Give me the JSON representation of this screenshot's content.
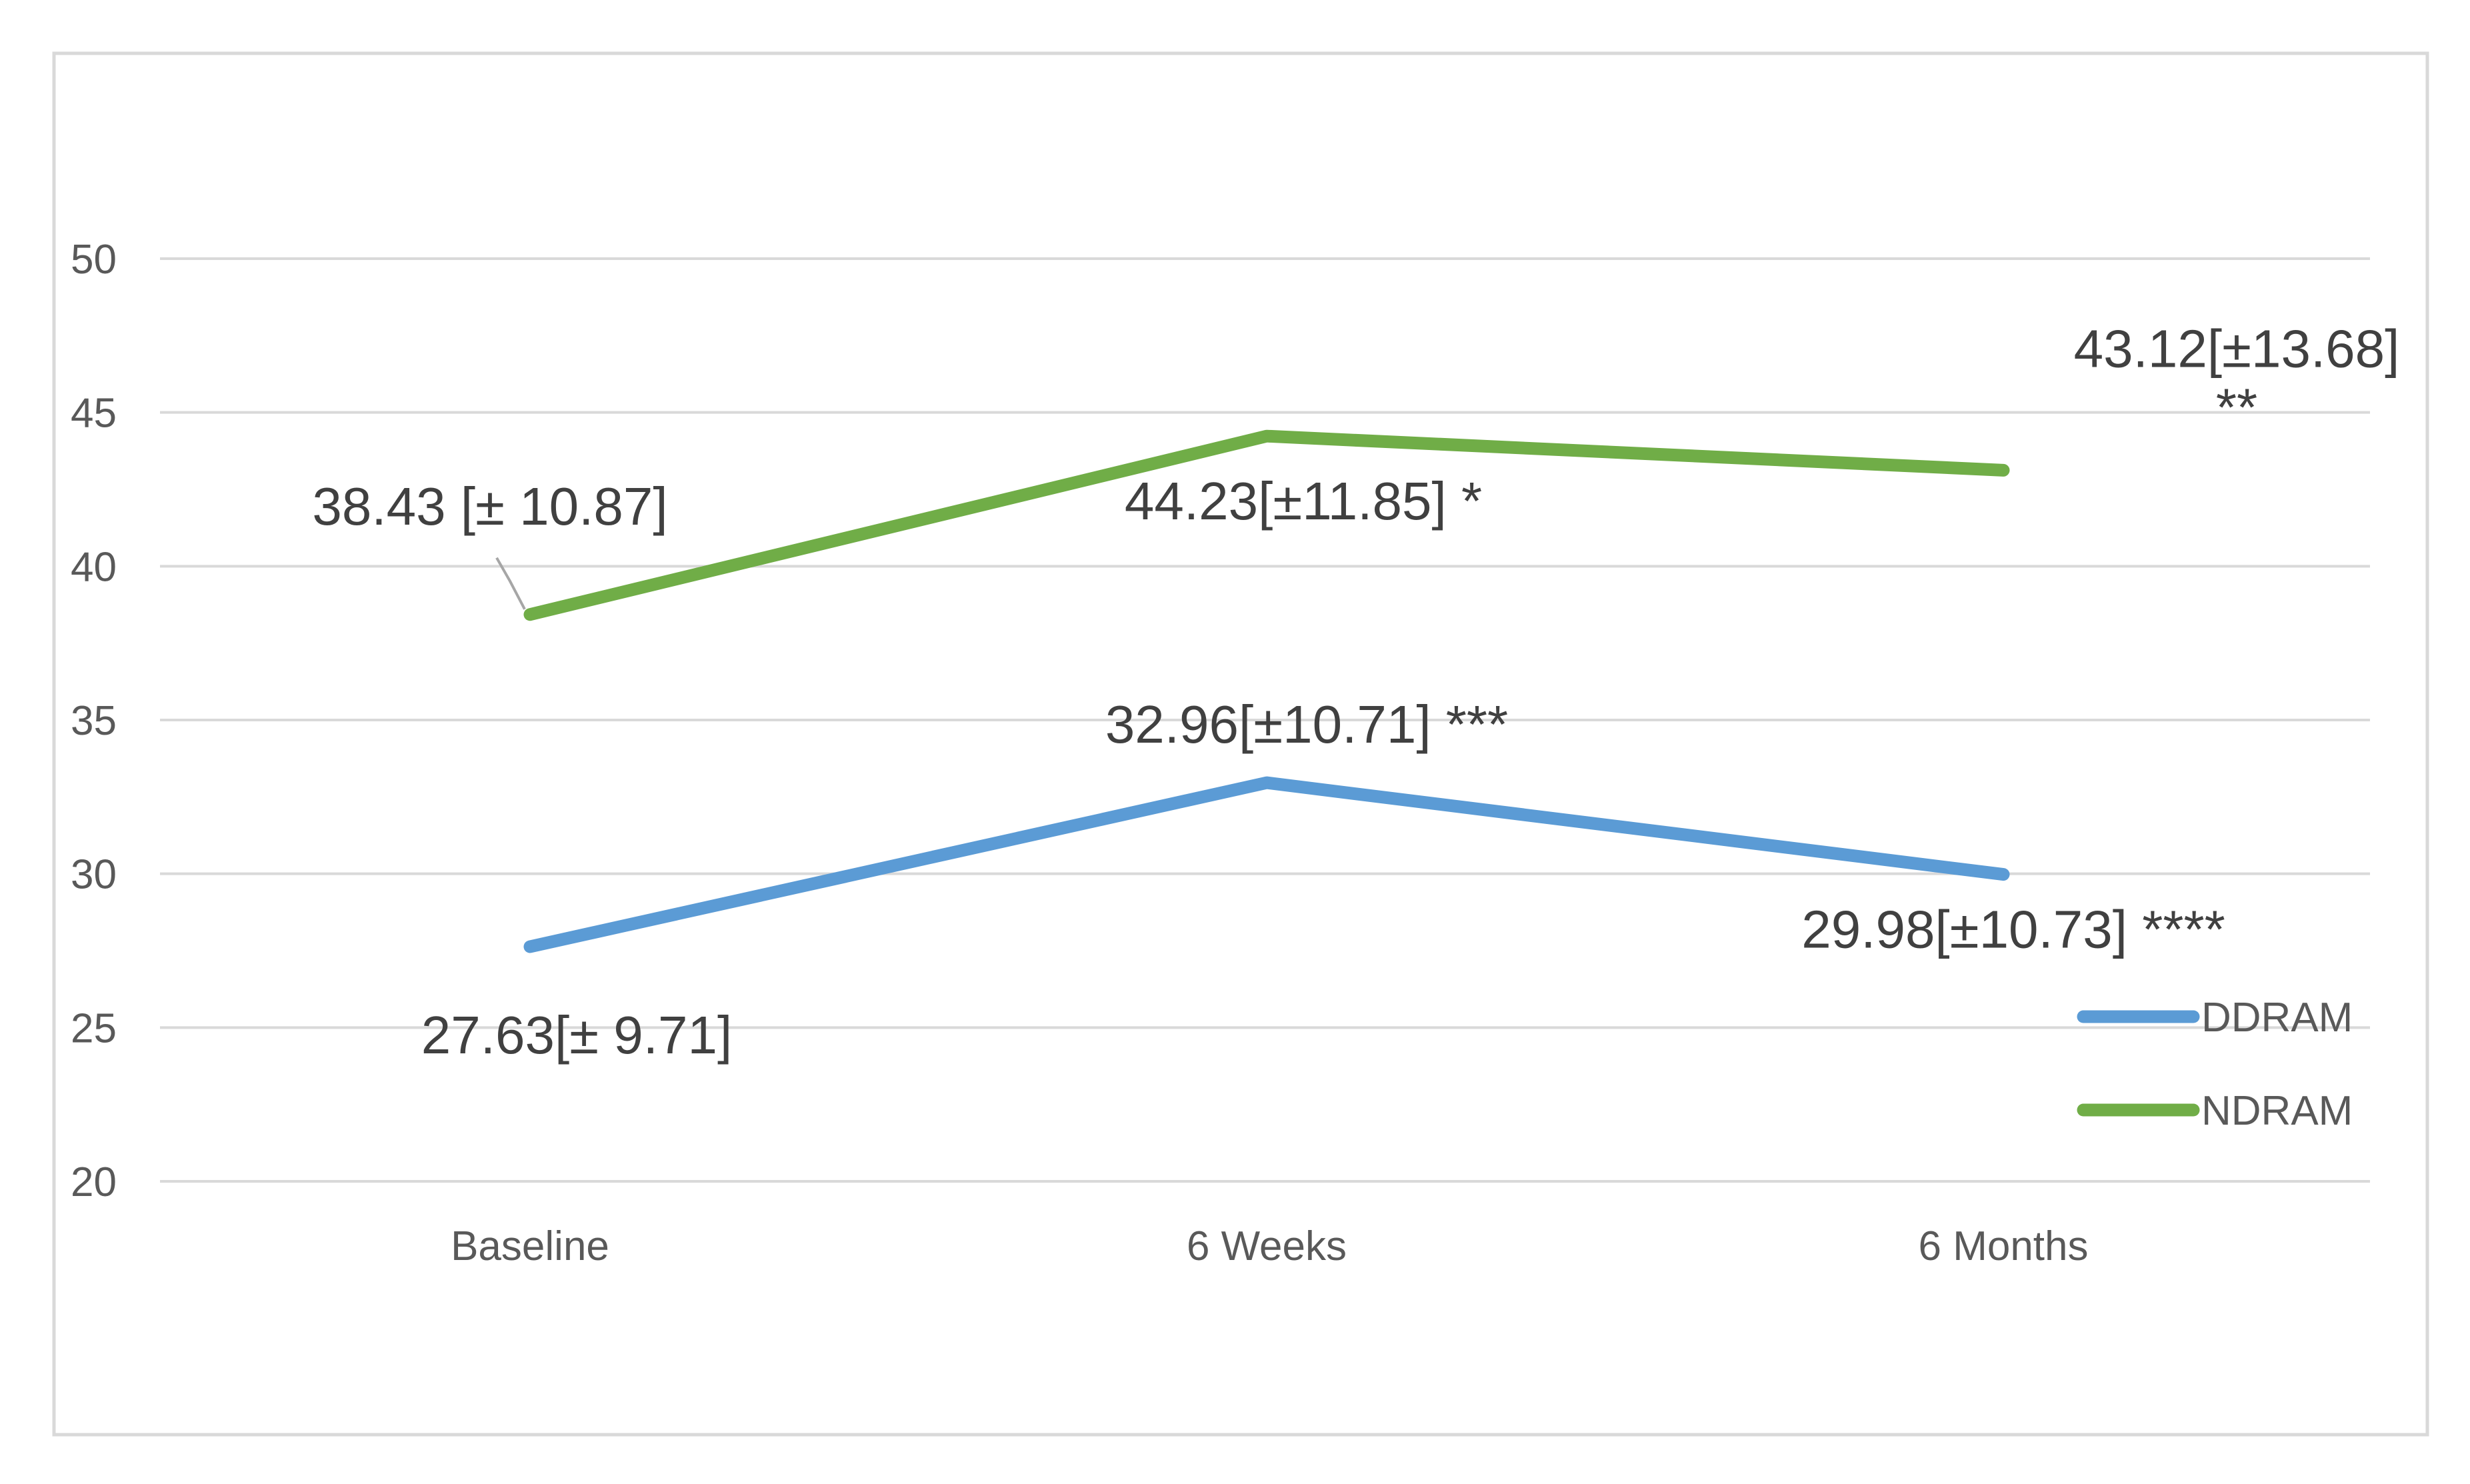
{
  "chart_data": {
    "type": "line",
    "categories": [
      "Baseline",
      "6 Weeks",
      "6 Months"
    ],
    "ylim": [
      20,
      50
    ],
    "yticks": [
      20,
      25,
      30,
      35,
      40,
      45,
      50
    ],
    "grid": true,
    "legend_position": "right",
    "series": [
      {
        "name": "DDRAM",
        "color": "#5b9bd5",
        "values": [
          27.63,
          32.96,
          29.98
        ],
        "labels": [
          [
            "27.63[± 9.71]"
          ],
          [
            "32.96[±10.71] ***"
          ],
          [
            "29.98[±10.73] ****"
          ]
        ]
      },
      {
        "name": "NDRAM",
        "color": "#70ad47",
        "values": [
          38.43,
          44.23,
          43.12
        ],
        "labels": [
          [
            "38.43 [± 10.87]"
          ],
          [
            "44.23[±11.85] *"
          ],
          [
            "43.12[±13.68]",
            "**"
          ]
        ]
      }
    ]
  }
}
